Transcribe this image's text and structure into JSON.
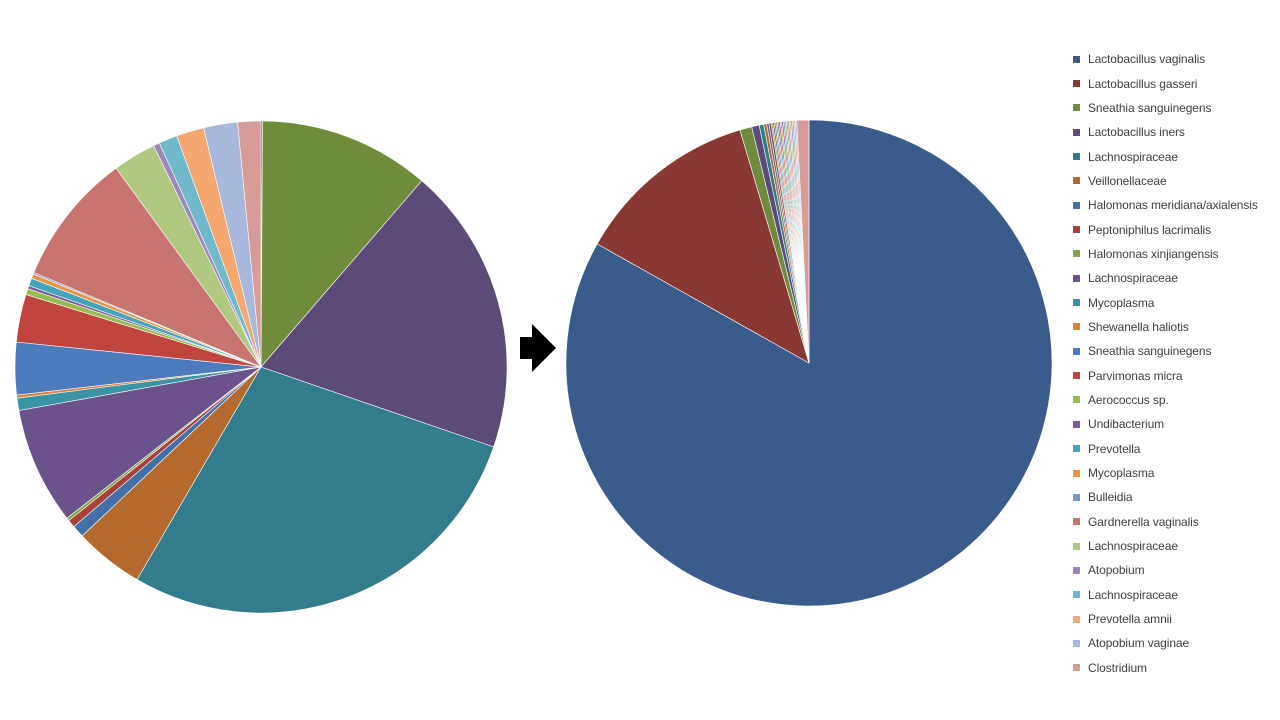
{
  "colors": {
    "arrow": "#000000",
    "slice_stroke": "#ffffff",
    "legend_text": "#404040"
  },
  "legend": {
    "items": [
      {
        "label": "Lactobacillus vaginalis",
        "color": "#3a5c8c"
      },
      {
        "label": "Lactobacillus gasseri",
        "color": "#8a3834"
      },
      {
        "label": "Sneathia sanguinegens",
        "color": "#6f8c3c"
      },
      {
        "label": "Lactobacillus iners",
        "color": "#5c4a78"
      },
      {
        "label": "Lachnospiraceae",
        "color": "#337c8e"
      },
      {
        "label": "Veillonellaceae",
        "color": "#b46a2e"
      },
      {
        "label": "Halomonas meridiana/axialensis",
        "color": "#4470a8"
      },
      {
        "label": "Peptoniphilus lacrimalis",
        "color": "#a8403c"
      },
      {
        "label": "Halomonas xinjiangensis",
        "color": "#85a446"
      },
      {
        "label": "Lachnospiraceae",
        "color": "#6c528c"
      },
      {
        "label": "Mycoplasma",
        "color": "#3a94a8"
      },
      {
        "label": "Shewanella haliotis",
        "color": "#d9843a"
      },
      {
        "label": "Sneathia sanguinegens",
        "color": "#4c7cbc"
      },
      {
        "label": "Parvimonas micra",
        "color": "#c0453e"
      },
      {
        "label": "Aerococcus sp.",
        "color": "#98bc52"
      },
      {
        "label": "Undibacterium",
        "color": "#7c5c9c"
      },
      {
        "label": "Prevotella",
        "color": "#44a4bc"
      },
      {
        "label": "Mycoplasma",
        "color": "#ec9444"
      },
      {
        "label": "Bulleidia",
        "color": "#7c98c8"
      },
      {
        "label": "Gardnerella vaginalis",
        "color": "#c87470"
      },
      {
        "label": "Lachnospiraceae",
        "color": "#b0c880"
      },
      {
        "label": "Atopobium",
        "color": "#9c88b8"
      },
      {
        "label": "Lachnospiraceae",
        "color": "#70b8cc"
      },
      {
        "label": "Prevotella amnii",
        "color": "#f4a870"
      },
      {
        "label": "Atopobium vaginae",
        "color": "#a8b8dc"
      },
      {
        "label": "Clostridium",
        "color": "#d89c98"
      }
    ]
  },
  "chart_data": [
    {
      "type": "pie",
      "labels": [
        "Lactobacillus vaginalis",
        "Lactobacillus gasseri",
        "Sneathia sanguinegens",
        "Lactobacillus iners",
        "Lachnospiraceae",
        "Veillonellaceae",
        "Halomonas meridiana/axialensis",
        "Peptoniphilus lacrimalis",
        "Halomonas xinjiangensis",
        "Lachnospiraceae",
        "Mycoplasma",
        "Shewanella haliotis",
        "Sneathia sanguinegens",
        "Parvimonas micra",
        "Aerococcus sp.",
        "Undibacterium",
        "Prevotella",
        "Mycoplasma",
        "Bulleidia",
        "Gardnerella vaginalis",
        "Lachnospiraceae",
        "Atopobium",
        "Lachnospiraceae",
        "Prevotella amnii",
        "Atopobium vaginae",
        "Clostridium"
      ],
      "values": [
        0.1,
        0.0,
        11.1,
        18.7,
        27.8,
        4.5,
        0.8,
        0.5,
        0.2,
        7.6,
        0.8,
        0.2,
        3.4,
        3.1,
        0.4,
        0.2,
        0.5,
        0.3,
        0.1,
        8.6,
        2.8,
        0.4,
        1.2,
        1.8,
        2.2,
        1.5
      ],
      "colors": [
        "#3a5c8c",
        "#8a3834",
        "#6f8c3c",
        "#5c4a78",
        "#337c8e",
        "#b46a2e",
        "#4470a8",
        "#a8403c",
        "#85a446",
        "#6c528c",
        "#3a94a8",
        "#d9843a",
        "#4c7cbc",
        "#c0453e",
        "#98bc52",
        "#7c5c9c",
        "#44a4bc",
        "#ec9444",
        "#7c98c8",
        "#c87470",
        "#b0c880",
        "#9c88b8",
        "#70b8cc",
        "#f4a870",
        "#a8b8dc",
        "#d89c98"
      ],
      "start_angle_deg": 0,
      "direction": "clockwise"
    },
    {
      "type": "pie",
      "labels": [
        "Lactobacillus vaginalis",
        "Lactobacillus gasseri",
        "Sneathia sanguinegens",
        "Lactobacillus iners",
        "Lachnospiraceae",
        "Veillonellaceae",
        "Halomonas meridiana/axialensis",
        "Peptoniphilus lacrimalis",
        "Halomonas xinjiangensis",
        "Lachnospiraceae",
        "Mycoplasma",
        "Shewanella haliotis",
        "Sneathia sanguinegens",
        "Parvimonas micra",
        "Aerococcus sp.",
        "Undibacterium",
        "Prevotella",
        "Mycoplasma",
        "Bulleidia",
        "Gardnerella vaginalis",
        "Lachnospiraceae",
        "Atopobium",
        "Lachnospiraceae",
        "Prevotella amnii",
        "Atopobium vaginae",
        "Clostridium"
      ],
      "values": [
        83.4,
        12.3,
        0.8,
        0.5,
        0.3,
        0.2,
        0.15,
        0.15,
        0.1,
        0.1,
        0.1,
        0.1,
        0.1,
        0.1,
        0.1,
        0.1,
        0.1,
        0.1,
        0.1,
        0.1,
        0.1,
        0.1,
        0.1,
        0.1,
        0.1,
        0.8
      ],
      "colors": [
        "#3a5c8c",
        "#8a3834",
        "#6f8c3c",
        "#5c4a78",
        "#337c8e",
        "#b46a2e",
        "#4470a8",
        "#a8403c",
        "#85a446",
        "#6c528c",
        "#3a94a8",
        "#d9843a",
        "#4c7cbc",
        "#c0453e",
        "#98bc52",
        "#7c5c9c",
        "#44a4bc",
        "#ec9444",
        "#7c98c8",
        "#c87470",
        "#b0c880",
        "#9c88b8",
        "#70b8cc",
        "#f4a870",
        "#a8b8dc",
        "#d89c98"
      ],
      "start_angle_deg": 0,
      "direction": "clockwise"
    }
  ]
}
